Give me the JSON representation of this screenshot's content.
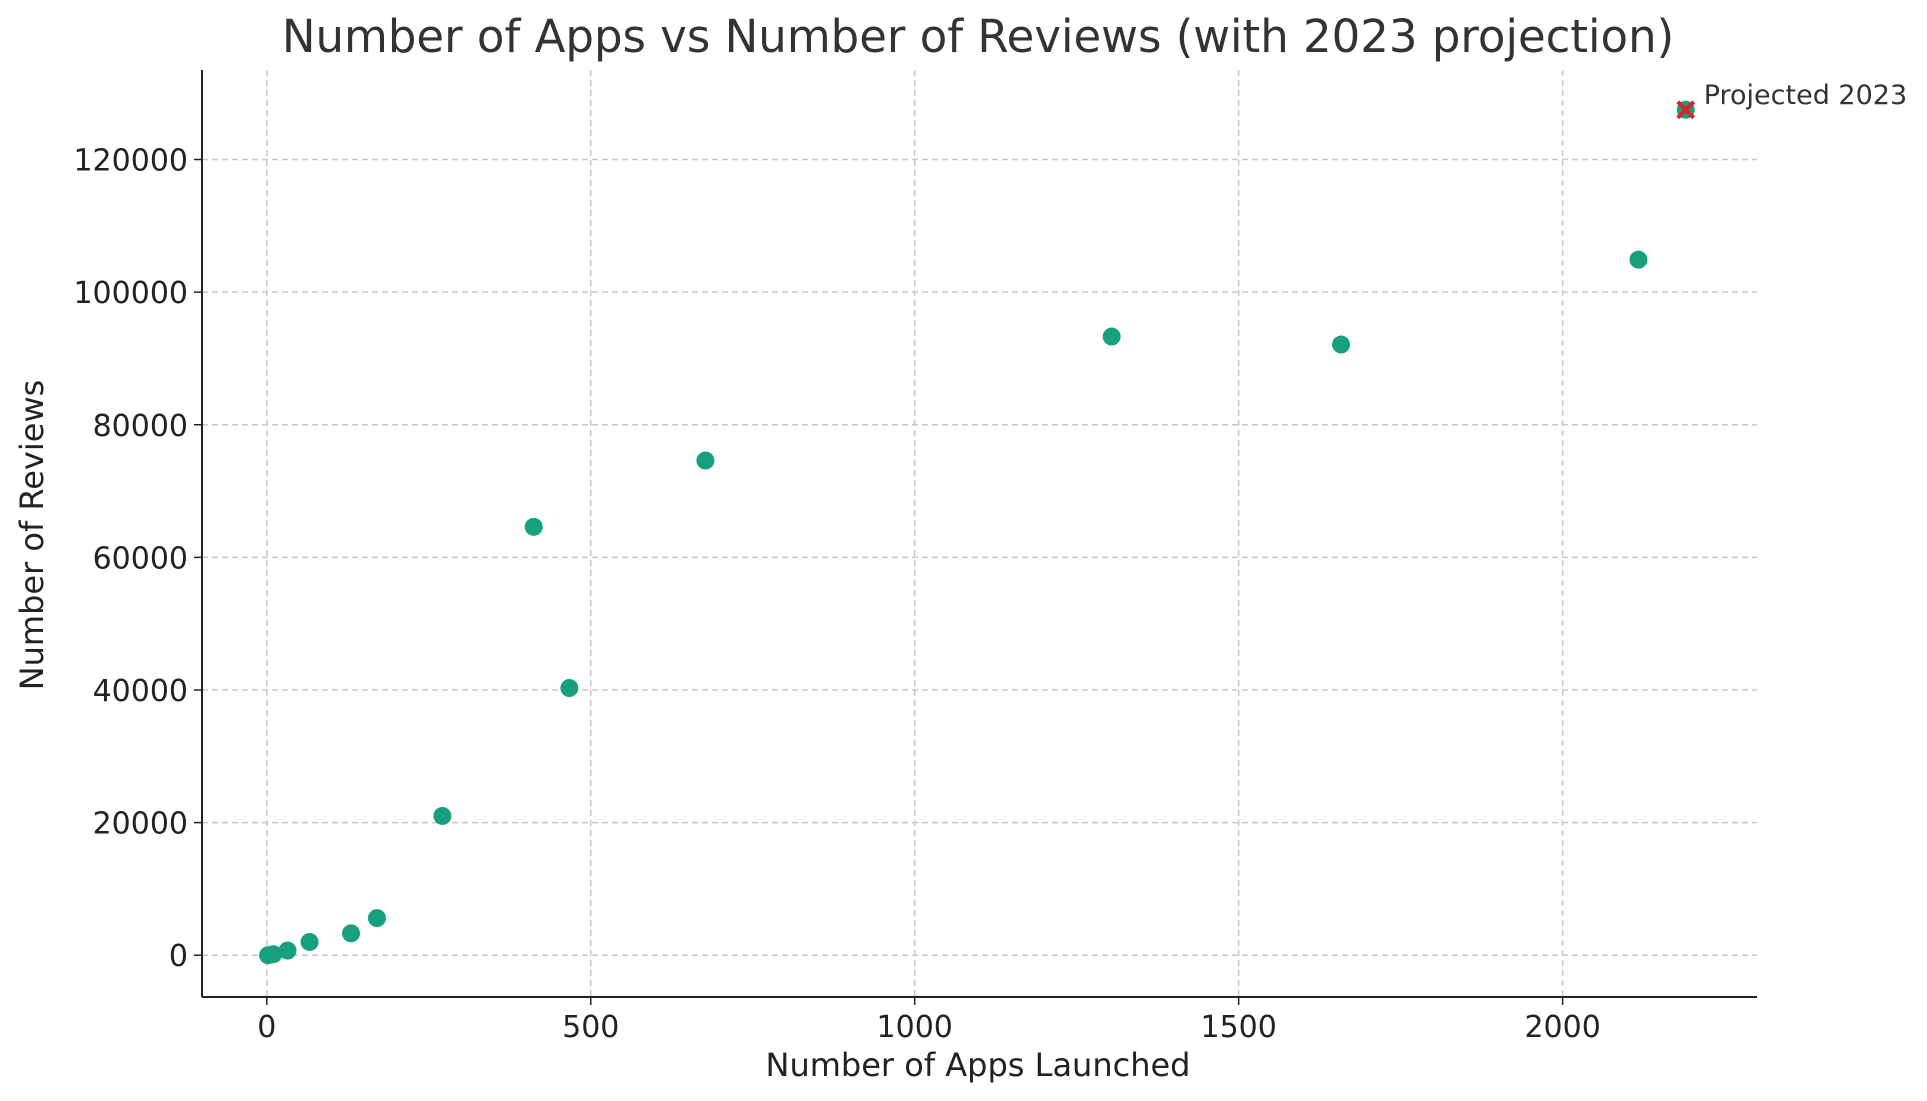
{
  "chart_data": {
    "type": "scatter",
    "title": "Number of Apps vs Number of Reviews (with 2023 projection)",
    "xlabel": "Number of Apps Launched",
    "ylabel": "Number of Reviews",
    "xlim": [
      -100,
      2300
    ],
    "ylim": [
      -6300,
      133500
    ],
    "xticks": [
      0,
      500,
      1000,
      1500,
      2000
    ],
    "yticks": [
      0,
      20000,
      40000,
      60000,
      80000,
      100000,
      120000
    ],
    "grid": true,
    "point_color": "#17a07e",
    "series": [
      {
        "points": [
          {
            "x": 2,
            "y": 0
          },
          {
            "x": 10,
            "y": 150
          },
          {
            "x": 32,
            "y": 700
          },
          {
            "x": 66,
            "y": 2000
          },
          {
            "x": 130,
            "y": 3300
          },
          {
            "x": 170,
            "y": 5600
          },
          {
            "x": 271,
            "y": 21000
          },
          {
            "x": 412,
            "y": 64600
          },
          {
            "x": 467,
            "y": 40300
          },
          {
            "x": 677,
            "y": 74600
          },
          {
            "x": 1304,
            "y": 93300
          },
          {
            "x": 1658,
            "y": 92100
          },
          {
            "x": 2117,
            "y": 104900
          }
        ]
      }
    ],
    "projection": {
      "label": "Projected 2023",
      "x": 2190,
      "y": 127500,
      "color": "#d62728"
    }
  }
}
